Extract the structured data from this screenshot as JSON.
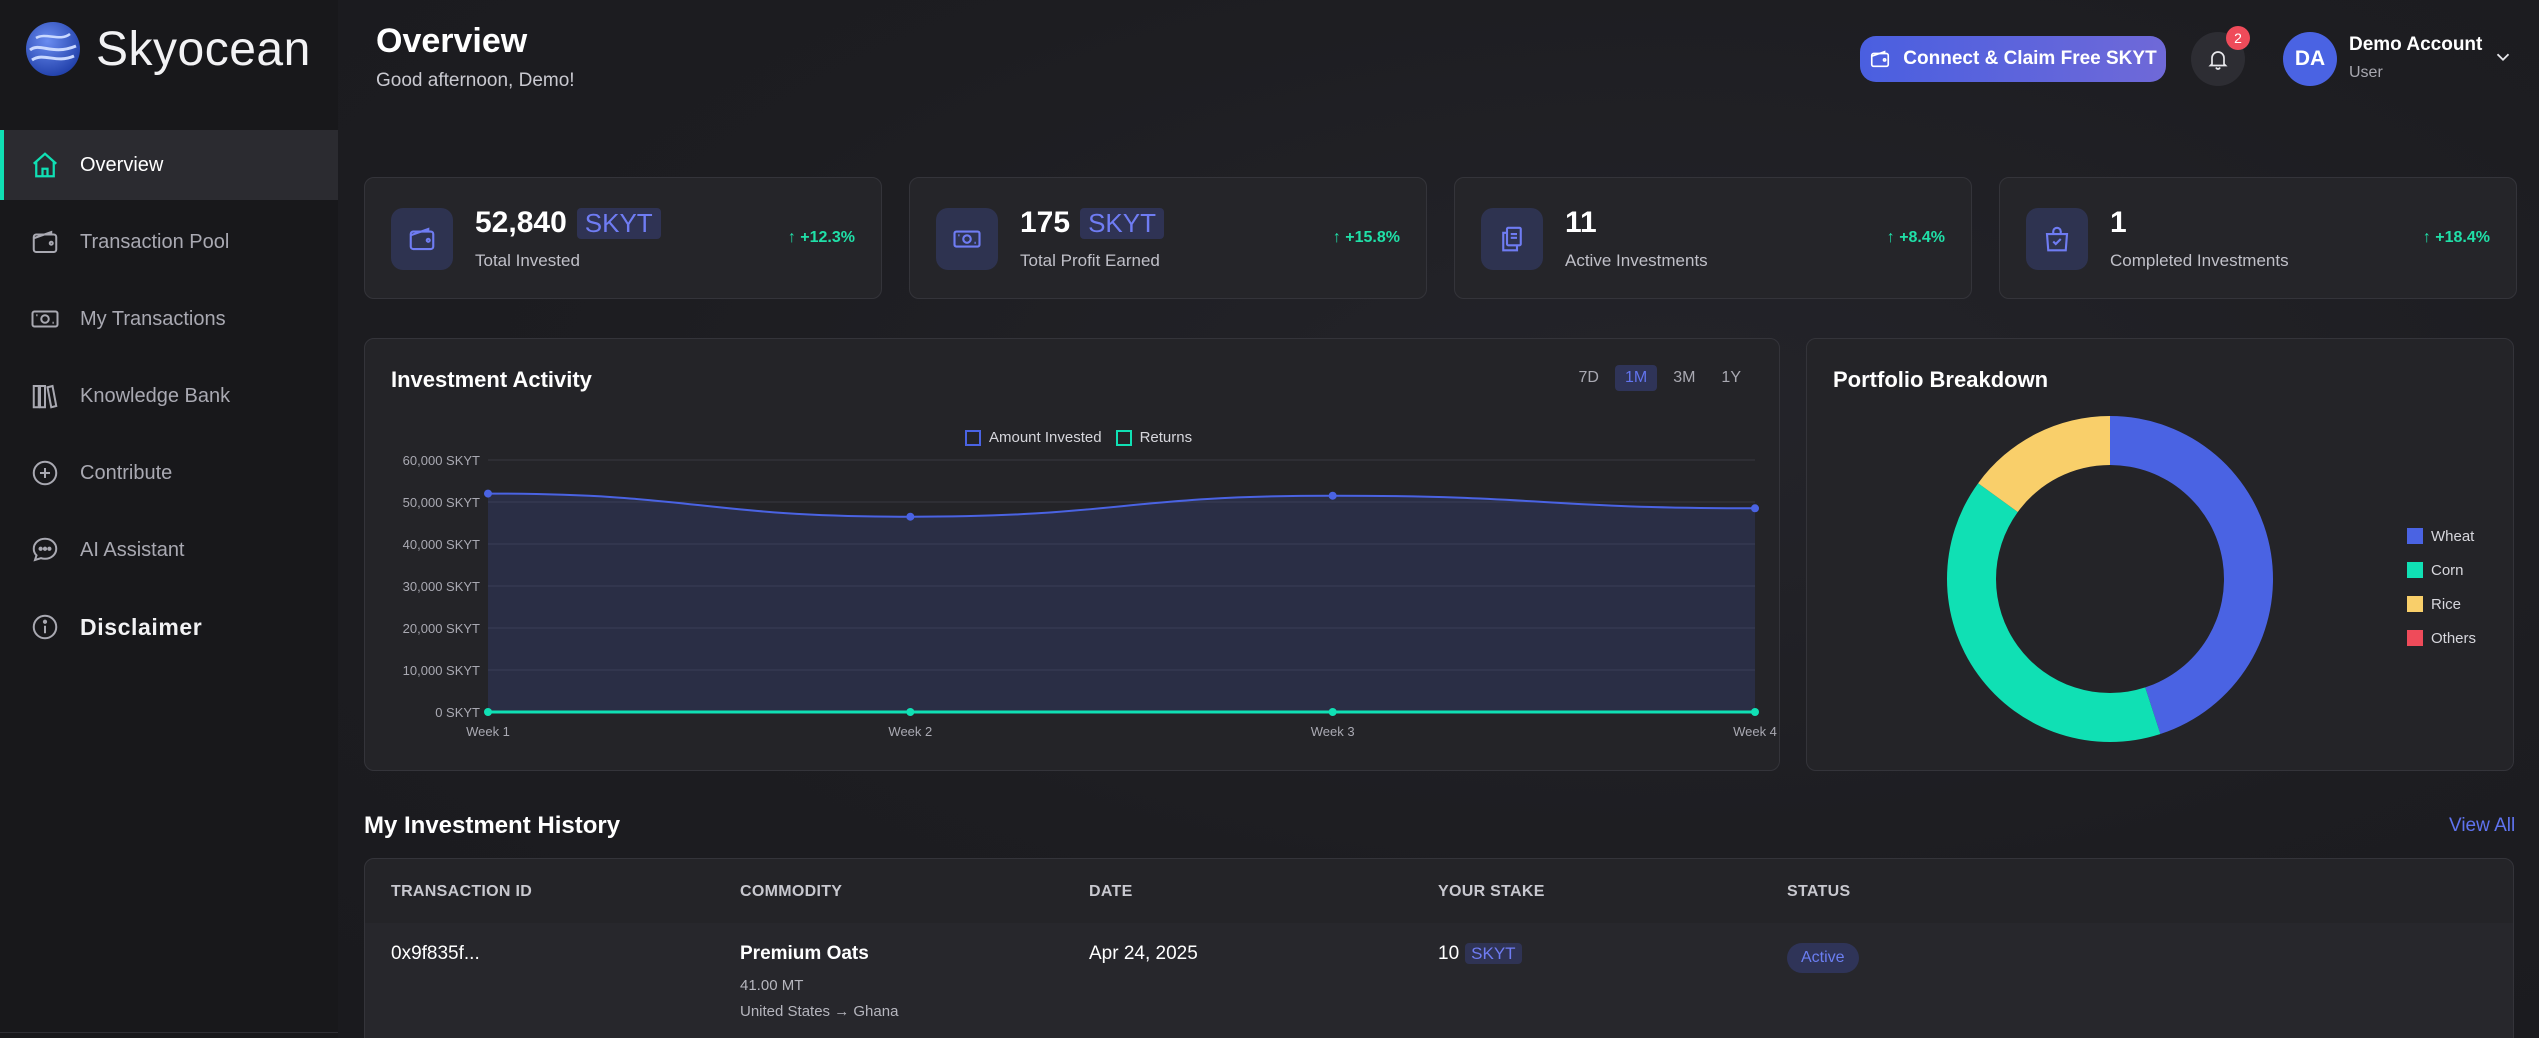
{
  "app": {
    "name": "Skyocean"
  },
  "nav": {
    "items": [
      {
        "label": "Overview",
        "icon": "home-icon",
        "active": true
      },
      {
        "label": "Transaction Pool",
        "icon": "wallet-icon"
      },
      {
        "label": "My Transactions",
        "icon": "cash-icon"
      },
      {
        "label": "Knowledge Bank",
        "icon": "books-icon"
      },
      {
        "label": "Contribute",
        "icon": "plus-circle-icon"
      },
      {
        "label": "AI Assistant",
        "icon": "chat-icon"
      },
      {
        "label": "Disclaimer",
        "icon": "info-icon"
      }
    ]
  },
  "header": {
    "title": "Overview",
    "subtitle": "Good afternoon, Demo!",
    "claim_label": "Connect & Claim Free SKYT",
    "notification_count": "2",
    "avatar_initials": "DA",
    "account_name": "Demo Account",
    "account_role": "User"
  },
  "stats": [
    {
      "value": "52,840",
      "unit": "SKYT",
      "label": "Total Invested",
      "change": "+12.3%",
      "icon": "wallet-icon"
    },
    {
      "value": "175",
      "unit": "SKYT",
      "label": "Total Profit Earned",
      "change": "+15.8%",
      "icon": "cash-icon"
    },
    {
      "value": "11",
      "unit": "",
      "label": "Active Investments",
      "change": "+8.4%",
      "icon": "documents-icon"
    },
    {
      "value": "1",
      "unit": "",
      "label": "Completed Investments",
      "change": "+18.4%",
      "icon": "bag-check-icon"
    }
  ],
  "activity": {
    "title": "Investment Activity",
    "ranges": [
      "7D",
      "1M",
      "3M",
      "1Y"
    ],
    "active_range": "1M"
  },
  "portfolio": {
    "title": "Portfolio Breakdown"
  },
  "colors": {
    "accent": "#4a63e3",
    "teal": "#10e0b4",
    "rice": "#f9cf6a",
    "others": "#ef4b5a"
  },
  "chart_data": [
    {
      "type": "area",
      "title": "Investment Activity",
      "categories": [
        "Week 1",
        "Week 2",
        "Week 3",
        "Week 4"
      ],
      "series": [
        {
          "name": "Amount Invested",
          "values": [
            52000,
            46500,
            51500,
            48500
          ],
          "color": "#4a63e3"
        },
        {
          "name": "Returns",
          "values": [
            0,
            0,
            0,
            0
          ],
          "color": "#10e0b4"
        }
      ],
      "yticks": [
        "60,000 SKYT",
        "50,000 SKYT",
        "40,000 SKYT",
        "30,000 SKYT",
        "20,000 SKYT",
        "10,000 SKYT",
        "0 SKYT"
      ],
      "ylim": [
        0,
        60000
      ],
      "grid": true,
      "legend": "top-center"
    },
    {
      "type": "pie",
      "title": "Portfolio Breakdown",
      "labels": [
        "Wheat",
        "Corn",
        "Rice",
        "Others"
      ],
      "values": [
        45,
        40,
        15,
        0
      ],
      "colors": [
        "#4a63e3",
        "#10e0b4",
        "#f9cf6a",
        "#ef4b5a"
      ],
      "legend": "right"
    }
  ],
  "history": {
    "title": "My Investment History",
    "view_all": "View All",
    "columns": [
      "TRANSACTION ID",
      "COMMODITY",
      "DATE",
      "YOUR STAKE",
      "STATUS"
    ],
    "rows": [
      {
        "id": "0x9f835f...",
        "commodity": "Premium Oats",
        "quantity": "41.00 MT",
        "route": "United States → Ghana",
        "date": "Apr 24, 2025",
        "stake": "10",
        "stake_unit": "SKYT",
        "status": "Active"
      }
    ]
  }
}
